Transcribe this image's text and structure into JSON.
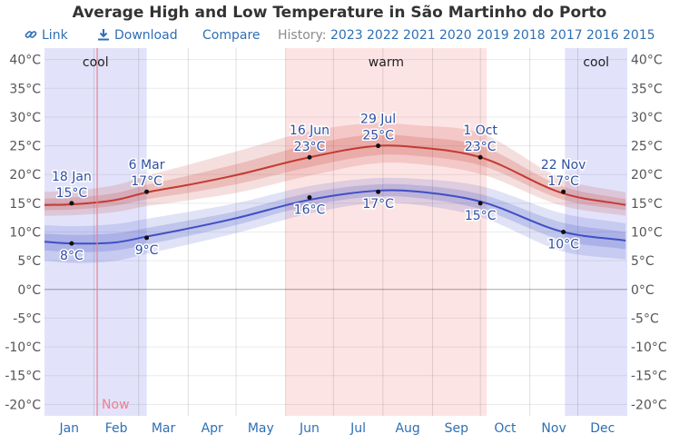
{
  "title": "Average High and Low Temperature in São Martinho do Porto",
  "toolbar": {
    "link_label": "Link",
    "link_icon": "link-icon",
    "download_label": "Download",
    "download_icon": "download-icon",
    "compare_label": "Compare",
    "history_label": "History:",
    "years": [
      "2023",
      "2022",
      "2021",
      "2020",
      "2019",
      "2018",
      "2017",
      "2016",
      "2015"
    ]
  },
  "chart_data": {
    "type": "area",
    "title": "Average High and Low Temperature in São Martinho do Porto",
    "y_unit": "°C",
    "ylim": [
      -22,
      42
    ],
    "y_ticks": [
      -20,
      -15,
      -10,
      -5,
      0,
      5,
      10,
      15,
      20,
      25,
      30,
      35,
      40
    ],
    "y_tick_labels": [
      "-20°C",
      "-15°C",
      "-10°C",
      "-5°C",
      "0°C",
      "5°C",
      "10°C",
      "15°C",
      "20°C",
      "25°C",
      "30°C",
      "35°C",
      "40°C"
    ],
    "months": [
      "Jan",
      "Feb",
      "Mar",
      "Apr",
      "May",
      "Jun",
      "Jul",
      "Aug",
      "Sep",
      "Oct",
      "Nov",
      "Dec"
    ],
    "grid": true,
    "now_label": "Now",
    "now_date": "Feb 3",
    "seasons": [
      {
        "label": "cool",
        "start": "Jan 1",
        "end": "Mar 5",
        "color": "#e2e3fa"
      },
      {
        "label": "warm",
        "start": "Jun 1",
        "end": "Oct 4",
        "color": "#fde4e4"
      },
      {
        "label": "cool",
        "start": "Nov 23",
        "end": "Dec 31",
        "color": "#e2e3fa"
      }
    ],
    "x_dates": [
      "Jan 1",
      "Jan 18",
      "Feb 15",
      "Mar 6",
      "Apr 1",
      "May 1",
      "Jun 16",
      "Jul 29",
      "Aug 20",
      "Oct 1",
      "Nov 22",
      "Dec 31"
    ],
    "series": [
      {
        "name": "Average High",
        "color": "#c33a32",
        "values": [
          14.7,
          14.8,
          15.6,
          16.9,
          18.2,
          19.9,
          23.0,
          25.0,
          24.8,
          23.0,
          16.7,
          14.7
        ],
        "band_25_75": [
          [
            13.8,
            15.8
          ],
          [
            13.9,
            16.0
          ],
          [
            14.6,
            16.8
          ],
          [
            15.7,
            18.2
          ],
          [
            16.8,
            19.8
          ],
          [
            18.3,
            21.8
          ],
          [
            21.3,
            25.2
          ],
          [
            23.4,
            27.0
          ],
          [
            23.3,
            26.6
          ],
          [
            21.6,
            25.0
          ],
          [
            15.6,
            17.9
          ],
          [
            13.8,
            15.7
          ]
        ],
        "band_10_90": [
          [
            12.8,
            17.0
          ],
          [
            12.9,
            17.2
          ],
          [
            13.5,
            18.2
          ],
          [
            14.5,
            19.8
          ],
          [
            15.5,
            21.7
          ],
          [
            16.8,
            24.0
          ],
          [
            19.8,
            27.5
          ],
          [
            22.0,
            29.0
          ],
          [
            21.9,
            28.6
          ],
          [
            20.1,
            27.2
          ],
          [
            14.5,
            19.2
          ],
          [
            12.8,
            16.9
          ]
        ]
      },
      {
        "name": "Average Low",
        "color": "#3f4fc4",
        "values": [
          8.3,
          8.0,
          8.2,
          9.2,
          10.6,
          12.4,
          15.6,
          17.2,
          17.1,
          15.3,
          10.0,
          8.5
        ],
        "band_25_75": [
          [
            6.8,
            9.7
          ],
          [
            6.5,
            9.5
          ],
          [
            6.8,
            9.8
          ],
          [
            7.8,
            10.7
          ],
          [
            9.3,
            12.0
          ],
          [
            11.2,
            13.6
          ],
          [
            14.6,
            16.8
          ],
          [
            16.2,
            18.3
          ],
          [
            16.0,
            18.2
          ],
          [
            14.0,
            16.6
          ],
          [
            8.5,
            11.6
          ],
          [
            7.0,
            10.0
          ]
        ],
        "band_10_90": [
          [
            5.0,
            11.2
          ],
          [
            4.6,
            11.0
          ],
          [
            5.0,
            11.4
          ],
          [
            6.2,
            12.3
          ],
          [
            7.8,
            13.5
          ],
          [
            9.8,
            15.0
          ],
          [
            13.2,
            18.0
          ],
          [
            15.1,
            19.4
          ],
          [
            14.8,
            19.3
          ],
          [
            12.6,
            18.0
          ],
          [
            6.6,
            13.2
          ],
          [
            5.2,
            11.5
          ]
        ]
      }
    ],
    "annotations": [
      {
        "series": "Average High",
        "date": "Jan 18",
        "value": 15,
        "date_label": "18 Jan",
        "value_label": "15°C"
      },
      {
        "series": "Average High",
        "date": "Mar 6",
        "value": 17,
        "date_label": "6 Mar",
        "value_label": "17°C"
      },
      {
        "series": "Average High",
        "date": "Jun 16",
        "value": 23,
        "date_label": "16 Jun",
        "value_label": "23°C"
      },
      {
        "series": "Average High",
        "date": "Jul 29",
        "value": 25,
        "date_label": "29 Jul",
        "value_label": "25°C"
      },
      {
        "series": "Average High",
        "date": "Oct 1",
        "value": 23,
        "date_label": "1 Oct",
        "value_label": "23°C"
      },
      {
        "series": "Average High",
        "date": "Nov 22",
        "value": 17,
        "date_label": "22 Nov",
        "value_label": "17°C"
      },
      {
        "series": "Average Low",
        "date": "Jan 18",
        "value": 8,
        "value_label": "8°C"
      },
      {
        "series": "Average Low",
        "date": "Mar 6",
        "value": 9,
        "value_label": "9°C"
      },
      {
        "series": "Average Low",
        "date": "Jun 16",
        "value": 16,
        "value_label": "16°C"
      },
      {
        "series": "Average Low",
        "date": "Jul 29",
        "value": 17,
        "value_label": "17°C"
      },
      {
        "series": "Average Low",
        "date": "Oct 1",
        "value": 15,
        "value_label": "15°C"
      },
      {
        "series": "Average Low",
        "date": "Nov 22",
        "value": 10,
        "value_label": "10°C"
      }
    ]
  }
}
